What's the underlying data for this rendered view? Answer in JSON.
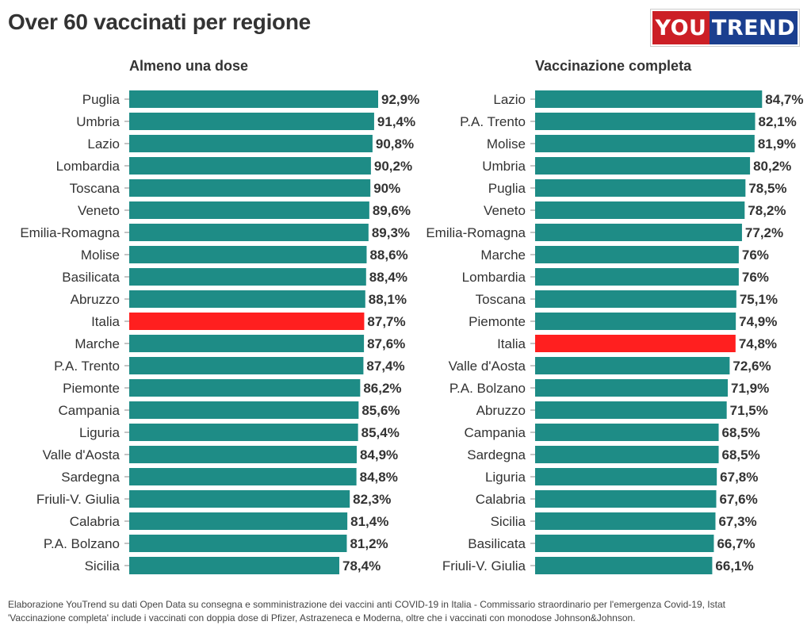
{
  "header": {
    "title": "Over 60 vaccinati per regione",
    "logo_left": "YOU",
    "logo_right": "TREND"
  },
  "colors": {
    "bar": "#1e8c86",
    "highlight": "#ff1f1f",
    "text": "#333333"
  },
  "chart_data": [
    {
      "type": "bar",
      "orientation": "horizontal",
      "title": "Almeno una dose",
      "highlight": "Italia",
      "xlim": [
        0,
        100
      ],
      "categories": [
        "Puglia",
        "Umbria",
        "Lazio",
        "Lombardia",
        "Toscana",
        "Veneto",
        "Emilia-Romagna",
        "Molise",
        "Basilicata",
        "Abruzzo",
        "Italia",
        "Marche",
        "P.A. Trento",
        "Piemonte",
        "Campania",
        "Liguria",
        "Valle d'Aosta",
        "Sardegna",
        "Friuli-V. Giulia",
        "Calabria",
        "P.A. Bolzano",
        "Sicilia"
      ],
      "values": [
        92.9,
        91.4,
        90.8,
        90.2,
        90,
        89.6,
        89.3,
        88.6,
        88.4,
        88.1,
        87.7,
        87.6,
        87.4,
        86.2,
        85.6,
        85.4,
        84.9,
        84.8,
        82.3,
        81.4,
        81.2,
        78.4
      ],
      "labels": [
        "92,9%",
        "91,4%",
        "90,8%",
        "90,2%",
        "90%",
        "89,6%",
        "89,3%",
        "88,6%",
        "88,4%",
        "88,1%",
        "87,7%",
        "87,6%",
        "87,4%",
        "86,2%",
        "85,6%",
        "85,4%",
        "84,9%",
        "84,8%",
        "82,3%",
        "81,4%",
        "81,2%",
        "78,4%"
      ]
    },
    {
      "type": "bar",
      "orientation": "horizontal",
      "title": "Vaccinazione completa",
      "highlight": "Italia",
      "xlim": [
        0,
        100
      ],
      "categories": [
        "Lazio",
        "P.A. Trento",
        "Molise",
        "Umbria",
        "Puglia",
        "Veneto",
        "Emilia-Romagna",
        "Marche",
        "Lombardia",
        "Toscana",
        "Piemonte",
        "Italia",
        "Valle d'Aosta",
        "P.A. Bolzano",
        "Abruzzo",
        "Campania",
        "Sardegna",
        "Liguria",
        "Calabria",
        "Sicilia",
        "Basilicata",
        "Friuli-V. Giulia"
      ],
      "values": [
        84.7,
        82.1,
        81.9,
        80.2,
        78.5,
        78.2,
        77.2,
        76,
        76,
        75.1,
        74.9,
        74.8,
        72.6,
        71.9,
        71.5,
        68.5,
        68.5,
        67.8,
        67.6,
        67.3,
        66.7,
        66.1
      ],
      "labels": [
        "84,7%",
        "82,1%",
        "81,9%",
        "80,2%",
        "78,5%",
        "78,2%",
        "77,2%",
        "76%",
        "76%",
        "75,1%",
        "74,9%",
        "74,8%",
        "72,6%",
        "71,9%",
        "71,5%",
        "68,5%",
        "68,5%",
        "67,8%",
        "67,6%",
        "67,3%",
        "66,7%",
        "66,1%"
      ]
    }
  ],
  "footer": {
    "line1": "Elaborazione YouTrend su dati Open Data su consegna e somministrazione dei vaccini anti COVID-19 in Italia - Commissario straordinario per l'emergenza Covid-19, Istat",
    "line2": "'Vaccinazione completa' include i vaccinati con doppia dose di Pfizer, Astrazeneca e Moderna, oltre che i vaccinati con monodose Johnson&Johnson."
  }
}
